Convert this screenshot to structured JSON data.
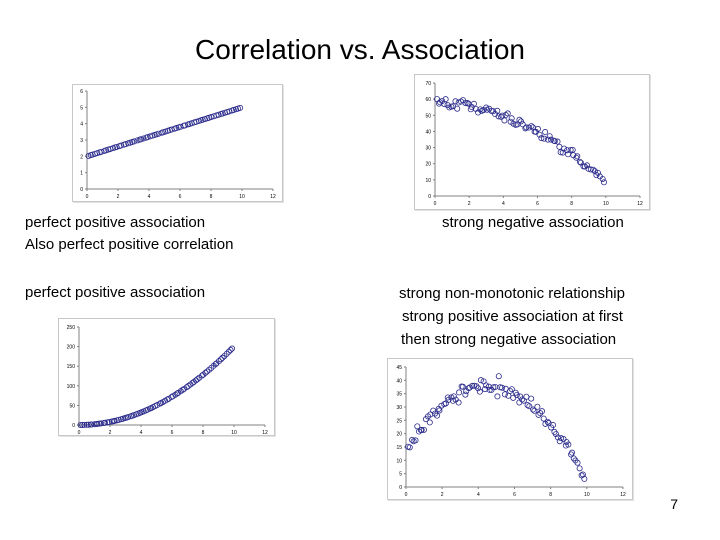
{
  "slide": {
    "title": "Correlation vs. Association",
    "page_number": "7"
  },
  "captions": {
    "c1_line1": "perfect positive association",
    "c1_line2": "Also perfect positive correlation",
    "c2_line1": "strong negative association",
    "c3_line1": "perfect positive association",
    "c4_line1": "strong non-monotonic relationship",
    "c4_line2": "strong positive association at first",
    "c4_line3": "then strong negative association"
  },
  "chart_data": [
    {
      "id": "linear",
      "type": "scatter",
      "title": "",
      "xlabel": "",
      "ylabel": "",
      "xlim": [
        0,
        12
      ],
      "ylim": [
        0,
        6
      ],
      "xticks": [
        0,
        2,
        4,
        6,
        8,
        10,
        12
      ],
      "yticks": [
        0,
        1,
        2,
        3,
        4,
        5,
        6
      ],
      "function": "y = 2 + 0.3x",
      "x_start": 0.1,
      "x_end": 9.9,
      "n_points": 70
    },
    {
      "id": "negative",
      "type": "scatter",
      "title": "",
      "xlabel": "",
      "ylabel": "",
      "xlim": [
        0,
        12
      ],
      "ylim": [
        0,
        70
      ],
      "xticks": [
        0,
        2,
        4,
        6,
        8,
        10,
        12
      ],
      "yticks": [
        0,
        10,
        20,
        30,
        40,
        50,
        60,
        70
      ],
      "function": "y = 58 - 0.5x^2 + noise",
      "x_start": 0.1,
      "x_end": 9.9,
      "n_points": 90
    },
    {
      "id": "quadratic",
      "type": "scatter",
      "title": "",
      "xlabel": "",
      "ylabel": "",
      "xlim": [
        0,
        12
      ],
      "ylim": [
        0,
        250
      ],
      "xticks": [
        0,
        2,
        4,
        6,
        8,
        10,
        12
      ],
      "yticks": [
        0,
        50,
        100,
        150,
        200,
        250
      ],
      "function": "y = 2x^2",
      "x_start": 0.1,
      "x_end": 9.9,
      "n_points": 80
    },
    {
      "id": "nonmonotonic",
      "type": "scatter",
      "title": "",
      "xlabel": "",
      "ylabel": "",
      "xlim": [
        0,
        12
      ],
      "ylim": [
        0,
        45
      ],
      "xticks": [
        0,
        2,
        4,
        6,
        8,
        10,
        12
      ],
      "yticks": [
        0,
        5,
        10,
        15,
        20,
        25,
        30,
        35,
        40,
        45
      ],
      "function": "y = 38 - 1.2(x-4.5)^2 + noise",
      "x_start": 0.1,
      "x_end": 9.9,
      "n_points": 100
    }
  ],
  "colors": {
    "marker": "#2b2b8c",
    "axis": "#808080",
    "tick_text": "#000000"
  }
}
